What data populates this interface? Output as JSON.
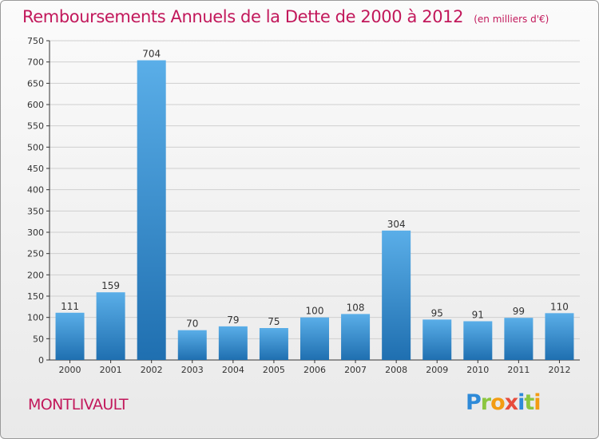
{
  "title": "Remboursements Annuels de la Dette de 2000 à 2012",
  "unit": "(en milliers d'€)",
  "commune": "MONTLIVAULT",
  "logo": {
    "text": "Proxiti",
    "letters": [
      {
        "ch": "P",
        "color": "#2e8ad8"
      },
      {
        "ch": "r",
        "color": "#8cc63f"
      },
      {
        "ch": "o",
        "color": "#f39c12"
      },
      {
        "ch": "x",
        "color": "#e74c3c"
      },
      {
        "ch": "i",
        "color": "#2e8ad8"
      },
      {
        "ch": "t",
        "color": "#8cc63f"
      },
      {
        "ch": "i",
        "color": "#f39c12"
      }
    ]
  },
  "colors": {
    "title": "#c2185b",
    "bar_light": "#5aaee8",
    "bar_dark": "#1f6fb0",
    "grid": "#cfcfcf",
    "axis": "#333333"
  },
  "chart_data": {
    "type": "bar",
    "categories": [
      "2000",
      "2001",
      "2002",
      "2003",
      "2004",
      "2005",
      "2006",
      "2007",
      "2008",
      "2009",
      "2010",
      "2011",
      "2012"
    ],
    "values": [
      111,
      159,
      704,
      70,
      79,
      75,
      100,
      108,
      304,
      95,
      91,
      99,
      110
    ],
    "ylim": [
      0,
      750
    ],
    "yticks": [
      0,
      50,
      100,
      150,
      200,
      250,
      300,
      350,
      400,
      450,
      500,
      550,
      600,
      650,
      700,
      750
    ],
    "grid": true,
    "legend": "none"
  }
}
